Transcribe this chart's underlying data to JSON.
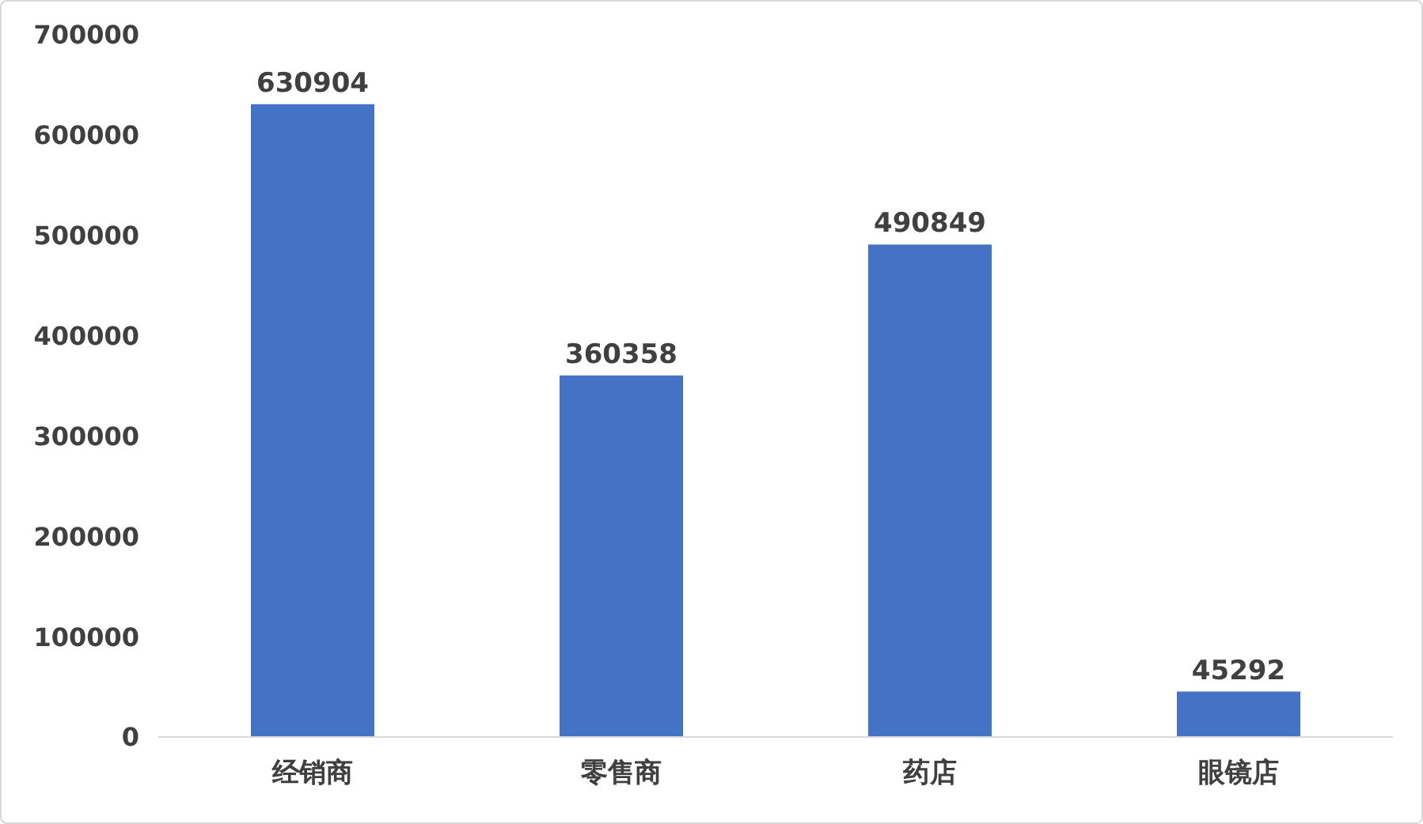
{
  "chart_data": {
    "type": "bar",
    "categories": [
      "经销商",
      "零售商",
      "药店",
      "眼镜店"
    ],
    "values": [
      630904,
      360358,
      490849,
      45292
    ],
    "color": "#4472c4",
    "ylim": [
      0,
      700000
    ],
    "yticks": [
      0,
      100000,
      200000,
      300000,
      400000,
      500000,
      600000,
      700000
    ],
    "grid": false,
    "data_labels": true
  }
}
